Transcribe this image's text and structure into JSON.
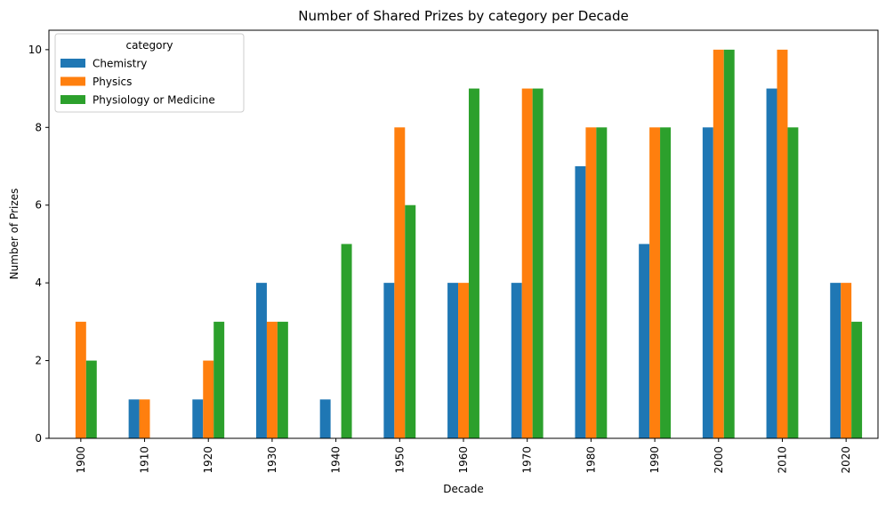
{
  "chart_data": {
    "type": "bar",
    "title": "Number of Shared Prizes by category per Decade",
    "xlabel": "Decade",
    "ylabel": "Number of Prizes",
    "categories": [
      "1900",
      "1910",
      "1920",
      "1930",
      "1940",
      "1950",
      "1960",
      "1970",
      "1980",
      "1990",
      "2000",
      "2010",
      "2020"
    ],
    "series": [
      {
        "name": "Chemistry",
        "color": "#1f77b4",
        "values": [
          0,
          1,
          1,
          4,
          1,
          4,
          4,
          4,
          7,
          5,
          8,
          9,
          4
        ]
      },
      {
        "name": "Physics",
        "color": "#ff7f0e",
        "values": [
          3,
          1,
          2,
          3,
          0,
          8,
          4,
          9,
          8,
          8,
          10,
          10,
          4
        ]
      },
      {
        "name": "Physiology or Medicine",
        "color": "#2ca02c",
        "values": [
          2,
          0,
          3,
          3,
          5,
          6,
          9,
          9,
          8,
          8,
          10,
          8,
          3
        ]
      }
    ],
    "ylim": [
      0,
      10.5
    ],
    "yticks": [
      0,
      2,
      4,
      6,
      8,
      10
    ],
    "legend": {
      "title": "category",
      "position": "upper-left"
    },
    "grid": false
  }
}
